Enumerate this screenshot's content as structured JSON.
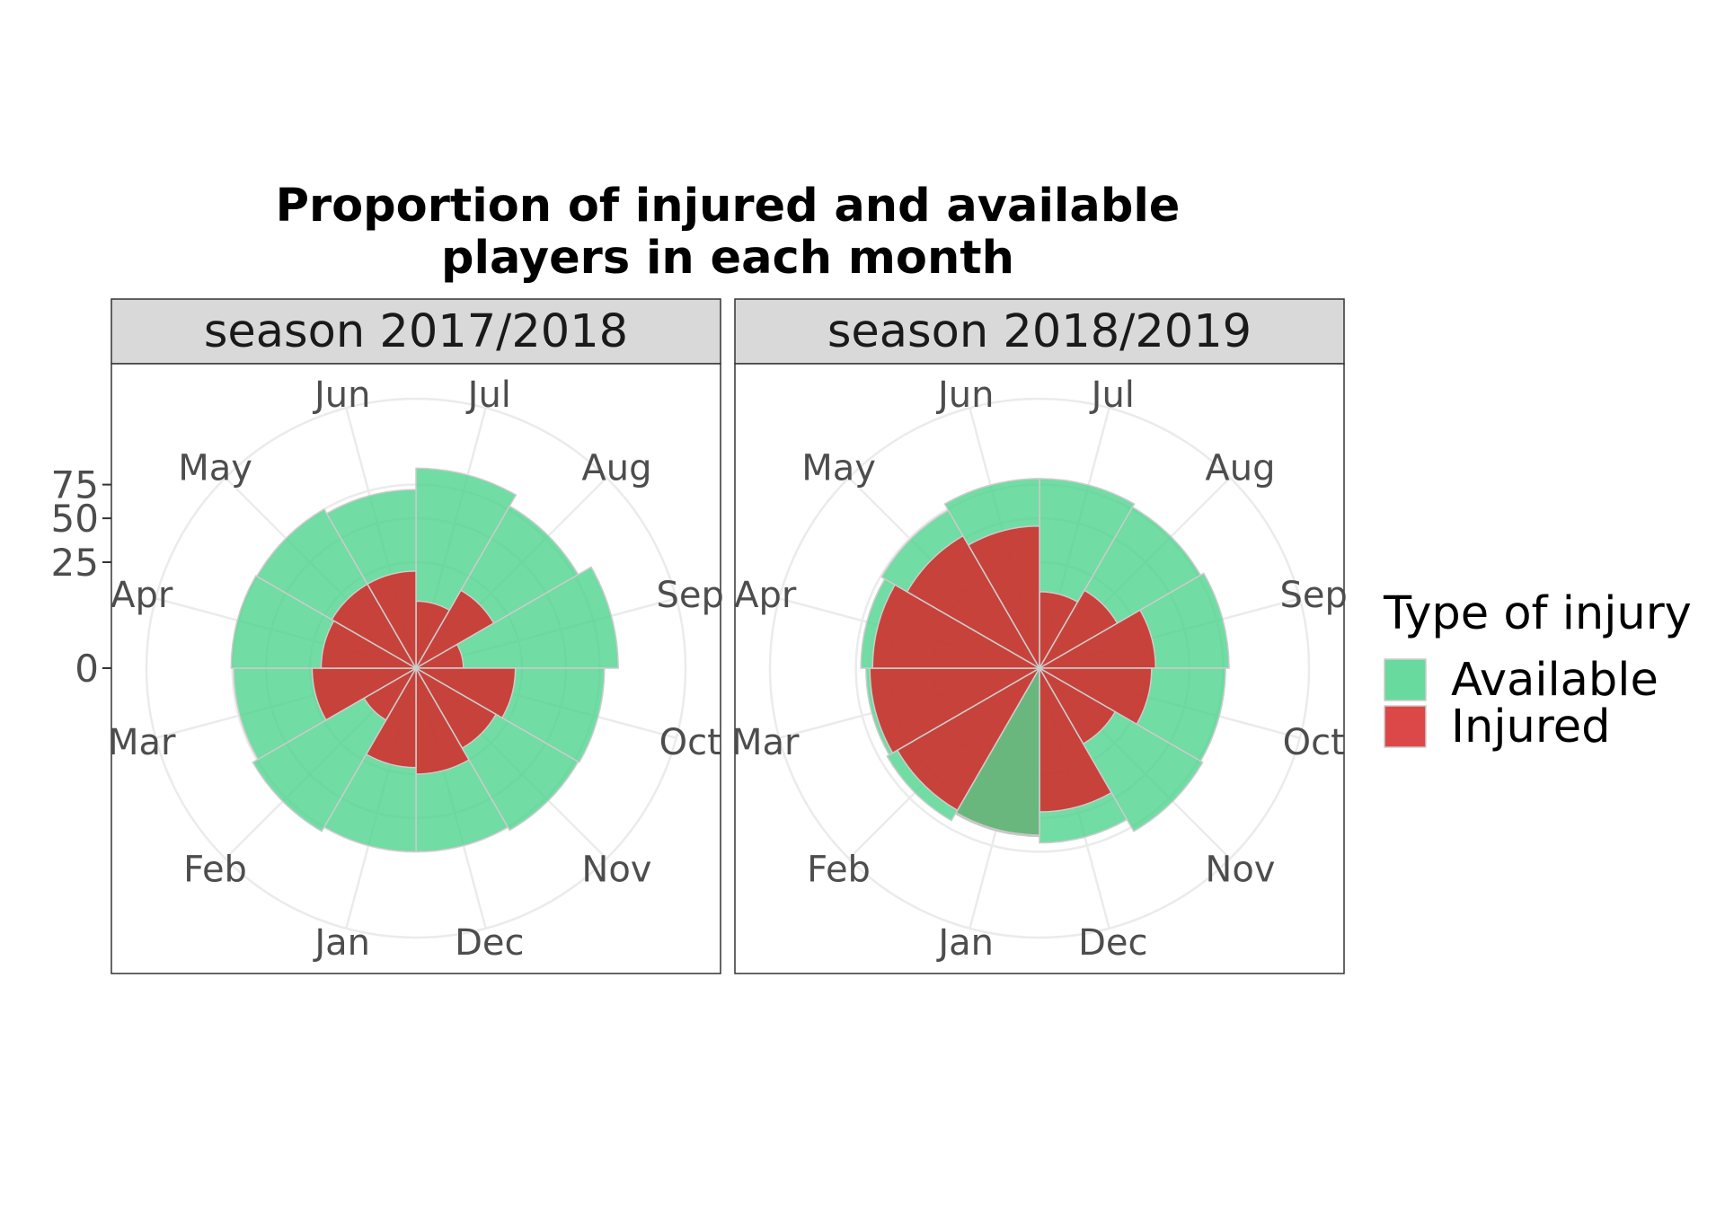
{
  "chart_data": {
    "type": "polar-bar",
    "title_lines": [
      "Proportion of injured and available",
      "players in each month"
    ],
    "months": [
      "Jul",
      "Aug",
      "Sep",
      "Oct",
      "Nov",
      "Dec",
      "Jan",
      "Feb",
      "Mar",
      "Apr",
      "May",
      "Jun"
    ],
    "radial_ticks": [
      0,
      25,
      50,
      75
    ],
    "legend": {
      "title": "Type of injury",
      "entries": [
        {
          "label": "Available",
          "color": "#4dd38c"
        },
        {
          "label": "Injured",
          "color": "#d62728"
        }
      ]
    },
    "panels": [
      {
        "strip": "season 2017/2018",
        "available": [
          89,
          78,
          91,
          79,
          78,
          75,
          75,
          79,
          74,
          76,
          75,
          71
        ],
        "injured": [
          10,
          18,
          5,
          22,
          19,
          25,
          22,
          8,
          24,
          20,
          21,
          21
        ]
      },
      {
        "strip": "season 2018/2019",
        "available": [
          80,
          77,
          80,
          77,
          79,
          68,
          62,
          69,
          67,
          71,
          74,
          80
        ],
        "injured": [
          13,
          18,
          30,
          28,
          17,
          46,
          63,
          60,
          64,
          62,
          52,
          45
        ]
      }
    ]
  }
}
